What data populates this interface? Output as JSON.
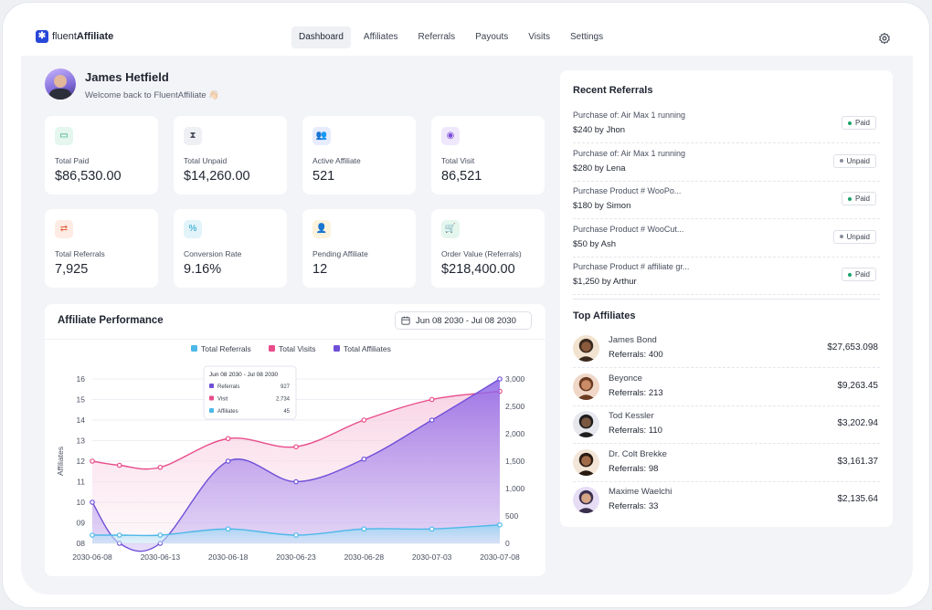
{
  "brand": {
    "logo_light": "fluent",
    "logo_bold": "Affiliate"
  },
  "nav": {
    "items": [
      {
        "label": "Dashboard",
        "active": true
      },
      {
        "label": "Affiliates",
        "active": false
      },
      {
        "label": "Referrals",
        "active": false
      },
      {
        "label": "Payouts",
        "active": false
      },
      {
        "label": "Visits",
        "active": false
      },
      {
        "label": "Settings",
        "active": false
      }
    ],
    "settings_icon": "gear-icon"
  },
  "user": {
    "name": "James Hetfield",
    "welcome": "Welcome back to FluentAffiliate 👋🏻"
  },
  "stats": [
    {
      "label": "Total Paid",
      "value": "$86,530.00",
      "icon": "wallet-icon",
      "glyph": "▭",
      "color": "#1aa36b",
      "bg": "#e4f6ee"
    },
    {
      "label": "Total Unpaid",
      "value": "$14,260.00",
      "icon": "hourglass-icon",
      "glyph": "⧗",
      "color": "#4a5060",
      "bg": "#eef0f4"
    },
    {
      "label": "Active Affiliate",
      "value": "521",
      "icon": "users-icon",
      "glyph": "👥",
      "color": "#3b5bdb",
      "bg": "#e7ecfd"
    },
    {
      "label": "Total Visit",
      "value": "86,521",
      "icon": "eye-icon",
      "glyph": "◉",
      "color": "#7b4dd6",
      "bg": "#efe8fc"
    },
    {
      "label": "Total Referrals",
      "value": "7,925",
      "icon": "referral-icon",
      "glyph": "⇄",
      "color": "#e0623b",
      "bg": "#fdebe4"
    },
    {
      "label": "Conversion Rate",
      "value": "9.16%",
      "icon": "percent-icon",
      "glyph": "%",
      "color": "#1b9fc7",
      "bg": "#e2f4fa"
    },
    {
      "label": "Pending Affiliate",
      "value": "12",
      "icon": "user-pending-icon",
      "glyph": "👤",
      "color": "#d89c12",
      "bg": "#fcf3dd"
    },
    {
      "label": "Order Value (Referrals)",
      "value": "$218,400.00",
      "icon": "cart-icon",
      "glyph": "🛒",
      "color": "#1aa36b",
      "bg": "#e4f6ee"
    }
  ],
  "performance": {
    "title": "Affiliate Performance",
    "date_range": "Jun 08 2030 - Jul 08 2030",
    "tooltip": {
      "title": "Jun 08 2030 - Jul 08 2030",
      "rows": [
        {
          "label": "Referrals",
          "value": "927",
          "color": "#6f4fd8"
        },
        {
          "label": "Visit",
          "value": "2,734",
          "color": "#e84c8b"
        },
        {
          "label": "Affiliates",
          "value": "45",
          "color": "#4db8e8"
        }
      ]
    }
  },
  "chart_data": {
    "type": "area",
    "x": [
      "2030-06-08",
      "2030-06-10",
      "2030-06-13",
      "2030-06-18",
      "2030-06-23",
      "2030-06-28",
      "2030-07-03",
      "2030-07-08"
    ],
    "x_tick_labels": [
      "2030-06-08",
      "2030-06-13",
      "2030-06-18",
      "2030-06-23",
      "2030-06-28",
      "2030-07-03",
      "2030-07-08"
    ],
    "ylabel": "Affiliates",
    "y_left_ticks": [
      "16",
      "15",
      "14",
      "13",
      "12",
      "11",
      "10",
      "09",
      "08"
    ],
    "y_right_ticks": [
      "3,000",
      "2,500",
      "2,000",
      "1,500",
      "1,000",
      "500",
      "0"
    ],
    "y_left_range": [
      8,
      16
    ],
    "y_right_range": [
      0,
      3000
    ],
    "series": [
      {
        "name": "Total Referrals",
        "color": "#4db8e8",
        "axis": "left",
        "values": [
          8.4,
          8.4,
          8.4,
          8.7,
          8.4,
          8.7,
          8.7,
          8.9
        ]
      },
      {
        "name": "Total Visits",
        "color": "#e84c8b",
        "axis": "left",
        "values": [
          12.0,
          11.8,
          11.7,
          13.1,
          12.7,
          14.0,
          15.0,
          15.4
        ]
      },
      {
        "name": "Total Affiliates",
        "color": "#6f4fd8",
        "axis": "left",
        "values": [
          10.0,
          8.0,
          8.0,
          12.0,
          11.0,
          12.1,
          14.0,
          16.0
        ]
      }
    ],
    "legend_position": "top-center",
    "grid": true
  },
  "recent_referrals": {
    "title": "Recent Referrals",
    "items": [
      {
        "desc": "Purchase of: Air Max 1 running",
        "amount": "$240 by Jhon",
        "status": "Paid"
      },
      {
        "desc": "Purchase of: Air Max 1 running",
        "amount": "$280 by Lena",
        "status": "Unpaid"
      },
      {
        "desc": "Purchase Product # WooPo...",
        "amount": "$180 by Simon",
        "status": "Paid"
      },
      {
        "desc": "Purchase Product # WooCut...",
        "amount": "$50 by Ash",
        "status": "Unpaid"
      },
      {
        "desc": "Purchase Product # affiliate gr...",
        "amount": "$1,250 by Arthur",
        "status": "Paid"
      }
    ],
    "status_colors": {
      "Paid": "#1aa36b",
      "Unpaid": "#8a8f9c"
    }
  },
  "top_affiliates": {
    "title": "Top Affiliates",
    "items": [
      {
        "name": "James Bond",
        "referrals": "Referrals: 400",
        "amount": "$27,653.098"
      },
      {
        "name": "Beyonce",
        "referrals": "Referrals: 213",
        "amount": "$9,263.45"
      },
      {
        "name": "Tod Kessler",
        "referrals": "Referrals: 110",
        "amount": "$3,202.94"
      },
      {
        "name": "Dr. Colt Brekke",
        "referrals": "Referrals: 98",
        "amount": "$3,161.37"
      },
      {
        "name": "Maxime Waelchi",
        "referrals": "Referrals: 33",
        "amount": "$2,135.64"
      }
    ]
  }
}
